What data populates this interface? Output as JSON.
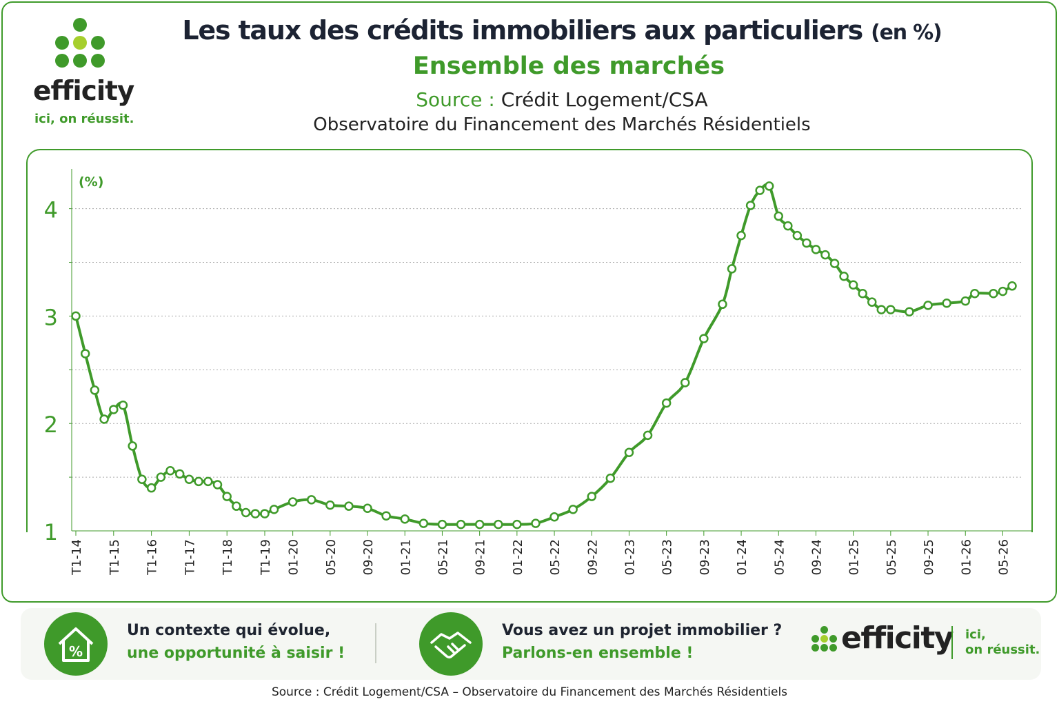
{
  "brand": {
    "name": "efficity",
    "tagline": "ici, on réussit.",
    "tagline_line1": "ici,",
    "tagline_line2": "on réussit.",
    "color": "#3f9a2a",
    "light_green": "#a6cf2d"
  },
  "header": {
    "title": "Les taux des crédits immobiliers aux particuliers",
    "title_unit": "(en %)",
    "subtitle": "Ensemble des marchés",
    "source_label": "Source :",
    "source_value": "Crédit Logement/CSA",
    "observatory": "Observatoire du Financement des Marchés Résidentiels"
  },
  "chart_data": {
    "type": "line",
    "title": "Les taux des crédits immobiliers aux particuliers (en %)",
    "ylabel": "(%)",
    "ylim": [
      1,
      4.4
    ],
    "yticks": [
      1,
      2,
      3,
      4
    ],
    "grid": true,
    "series_color": "#3f9a2a",
    "x_tick_labels": [
      "T1-14",
      "T1-15",
      "T1-16",
      "T1-17",
      "T1-18",
      "T1-19",
      "01-20",
      "05-20",
      "09-20",
      "01-21",
      "05-21",
      "09-21",
      "01-22",
      "05-22",
      "09-22",
      "01-23",
      "05-23",
      "09-23",
      "01-24",
      "05-24",
      "09-24",
      "01-25",
      "05-25",
      "09-25",
      "01-26",
      "05-26"
    ],
    "series": [
      {
        "points": [
          {
            "x": "T1-14",
            "y": 3.0
          },
          {
            "x": "T2-14",
            "y": 2.65
          },
          {
            "x": "T3-14",
            "y": 2.31
          },
          {
            "x": "T4-14",
            "y": 2.04
          },
          {
            "x": "T1-15",
            "y": 2.13
          },
          {
            "x": "T2-15",
            "y": 2.17
          },
          {
            "x": "T3-15",
            "y": 1.79
          },
          {
            "x": "T4-15",
            "y": 1.48
          },
          {
            "x": "T1-16",
            "y": 1.4
          },
          {
            "x": "T2-16",
            "y": 1.5
          },
          {
            "x": "T3-16",
            "y": 1.56
          },
          {
            "x": "T4-16",
            "y": 1.53
          },
          {
            "x": "T1-17",
            "y": 1.48
          },
          {
            "x": "T2-17",
            "y": 1.46
          },
          {
            "x": "T3-17",
            "y": 1.46
          },
          {
            "x": "T4-17",
            "y": 1.43
          },
          {
            "x": "T1-18",
            "y": 1.32
          },
          {
            "x": "T2-18",
            "y": 1.23
          },
          {
            "x": "T3-18",
            "y": 1.17
          },
          {
            "x": "T4-18",
            "y": 1.16
          },
          {
            "x": "T1-19",
            "y": 1.16
          },
          {
            "x": "11-19",
            "y": 1.2
          },
          {
            "x": "01-20",
            "y": 1.27
          },
          {
            "x": "03-20",
            "y": 1.29
          },
          {
            "x": "05-20",
            "y": 1.24
          },
          {
            "x": "07-20",
            "y": 1.23
          },
          {
            "x": "09-20",
            "y": 1.21
          },
          {
            "x": "11-20",
            "y": 1.14
          },
          {
            "x": "01-21",
            "y": 1.11
          },
          {
            "x": "03-21",
            "y": 1.07
          },
          {
            "x": "05-21",
            "y": 1.06
          },
          {
            "x": "07-21",
            "y": 1.06
          },
          {
            "x": "09-21",
            "y": 1.06
          },
          {
            "x": "11-21",
            "y": 1.06
          },
          {
            "x": "01-22",
            "y": 1.06
          },
          {
            "x": "03-22",
            "y": 1.07
          },
          {
            "x": "05-22",
            "y": 1.13
          },
          {
            "x": "07-22",
            "y": 1.2
          },
          {
            "x": "09-22",
            "y": 1.32
          },
          {
            "x": "11-22",
            "y": 1.49
          },
          {
            "x": "01-23",
            "y": 1.73
          },
          {
            "x": "03-23",
            "y": 1.89
          },
          {
            "x": "05-23",
            "y": 2.19
          },
          {
            "x": "07-23",
            "y": 2.38
          },
          {
            "x": "09-23",
            "y": 2.79
          },
          {
            "x": "11-23",
            "y": 3.11
          },
          {
            "x": "12-23",
            "y": 3.44
          },
          {
            "x": "01-24",
            "y": 3.75
          },
          {
            "x": "02-24",
            "y": 4.03
          },
          {
            "x": "03-24",
            "y": 4.17
          },
          {
            "x": "04-24",
            "y": 4.21
          },
          {
            "x": "05-24",
            "y": 3.93
          },
          {
            "x": "06-24",
            "y": 3.84
          },
          {
            "x": "07-24",
            "y": 3.75
          },
          {
            "x": "08-24",
            "y": 3.68
          },
          {
            "x": "09-24",
            "y": 3.62
          },
          {
            "x": "10-24",
            "y": 3.57
          },
          {
            "x": "11-24",
            "y": 3.49
          },
          {
            "x": "12-24",
            "y": 3.37
          },
          {
            "x": "01-25",
            "y": 3.29
          },
          {
            "x": "02-25",
            "y": 3.21
          },
          {
            "x": "03-25",
            "y": 3.13
          },
          {
            "x": "04-25",
            "y": 3.06
          },
          {
            "x": "05-25",
            "y": 3.06
          },
          {
            "x": "07-25",
            "y": 3.04
          },
          {
            "x": "09-25",
            "y": 3.1
          },
          {
            "x": "11-25",
            "y": 3.12
          },
          {
            "x": "01-26",
            "y": 3.14
          },
          {
            "x": "02-26",
            "y": 3.21
          },
          {
            "x": "04-26",
            "y": 3.21
          },
          {
            "x": "05-26",
            "y": 3.23
          },
          {
            "x": "06-26",
            "y": 3.28
          }
        ]
      }
    ]
  },
  "footer": {
    "block1_line1": "Un contexte qui évolue,",
    "block1_line2": "une opportunité à saisir !",
    "block1_icon": "house-percent-icon",
    "block2_line1": "Vous avez un projet immobilier ?",
    "block2_line2": "Parlons-en ensemble !",
    "block2_icon": "handshake-icon"
  },
  "bottom_source": "Source : Crédit Logement/CSA – Observatoire du Financement des Marchés Résidentiels"
}
